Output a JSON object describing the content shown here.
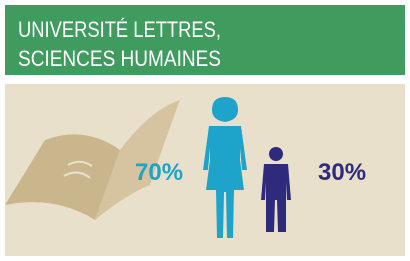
{
  "header": {
    "title_lines": [
      "UNIVERSITÉ LETTRES,",
      "SCIENCES HUMAINES"
    ]
  },
  "stats": [
    {
      "label": "70%"
    },
    {
      "label": "30%"
    }
  ]
}
